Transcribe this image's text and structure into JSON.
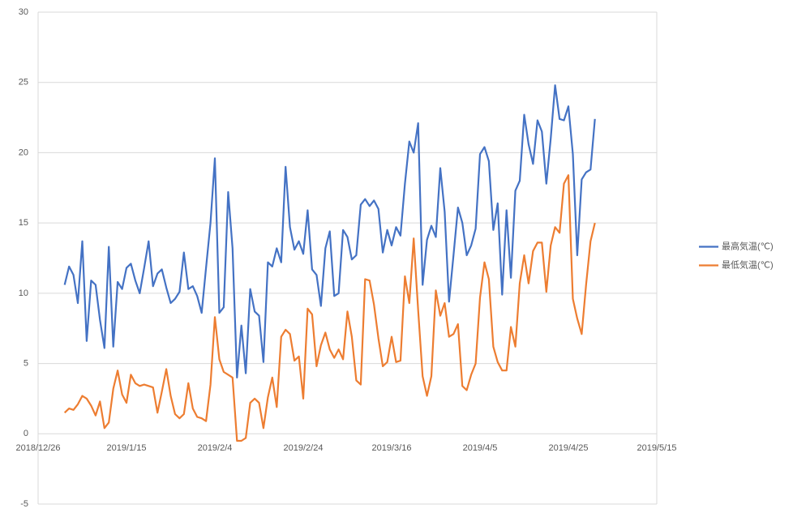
{
  "chart_data": {
    "type": "line",
    "x": [
      "2019/1/1",
      "2019/1/2",
      "2019/1/3",
      "2019/1/4",
      "2019/1/5",
      "2019/1/6",
      "2019/1/7",
      "2019/1/8",
      "2019/1/9",
      "2019/1/10",
      "2019/1/11",
      "2019/1/12",
      "2019/1/13",
      "2019/1/14",
      "2019/1/15",
      "2019/1/16",
      "2019/1/17",
      "2019/1/18",
      "2019/1/19",
      "2019/1/20",
      "2019/1/21",
      "2019/1/22",
      "2019/1/23",
      "2019/1/24",
      "2019/1/25",
      "2019/1/26",
      "2019/1/27",
      "2019/1/28",
      "2019/1/29",
      "2019/1/30",
      "2019/1/31",
      "2019/2/1",
      "2019/2/2",
      "2019/2/3",
      "2019/2/4",
      "2019/2/5",
      "2019/2/6",
      "2019/2/7",
      "2019/2/8",
      "2019/2/9",
      "2019/2/10",
      "2019/2/11",
      "2019/2/12",
      "2019/2/13",
      "2019/2/14",
      "2019/2/15",
      "2019/2/16",
      "2019/2/17",
      "2019/2/18",
      "2019/2/19",
      "2019/2/20",
      "2019/2/21",
      "2019/2/22",
      "2019/2/23",
      "2019/2/24",
      "2019/2/25",
      "2019/2/26",
      "2019/2/27",
      "2019/2/28",
      "2019/3/1",
      "2019/3/2",
      "2019/3/3",
      "2019/3/4",
      "2019/3/5",
      "2019/3/6",
      "2019/3/7",
      "2019/3/8",
      "2019/3/9",
      "2019/3/10",
      "2019/3/11",
      "2019/3/12",
      "2019/3/13",
      "2019/3/14",
      "2019/3/15",
      "2019/3/16",
      "2019/3/17",
      "2019/3/18",
      "2019/3/19",
      "2019/3/20",
      "2019/3/21",
      "2019/3/22",
      "2019/3/23",
      "2019/3/24",
      "2019/3/25",
      "2019/3/26",
      "2019/3/27",
      "2019/3/28",
      "2019/3/29",
      "2019/3/30",
      "2019/3/31",
      "2019/4/1",
      "2019/4/2",
      "2019/4/3",
      "2019/4/4",
      "2019/4/5",
      "2019/4/6",
      "2019/4/7",
      "2019/4/8",
      "2019/4/9",
      "2019/4/10",
      "2019/4/11",
      "2019/4/12",
      "2019/4/13",
      "2019/4/14",
      "2019/4/15",
      "2019/4/16",
      "2019/4/17",
      "2019/4/18",
      "2019/4/19",
      "2019/4/20",
      "2019/4/21",
      "2019/4/22",
      "2019/4/23",
      "2019/4/24",
      "2019/4/25",
      "2019/4/26",
      "2019/4/27",
      "2019/4/28",
      "2019/4/29",
      "2019/4/30",
      "2019/5/1"
    ],
    "series": [
      {
        "name": "最高気温(℃)",
        "color": "#4472c4",
        "values": [
          10.6,
          11.9,
          11.3,
          9.3,
          13.7,
          6.6,
          10.9,
          10.6,
          8.1,
          6.1,
          13.3,
          6.2,
          10.8,
          10.3,
          11.8,
          12.1,
          10.9,
          10.0,
          11.8,
          13.7,
          10.5,
          11.4,
          11.7,
          10.4,
          9.3,
          9.6,
          10.1,
          12.9,
          10.3,
          10.5,
          9.8,
          8.6,
          11.8,
          15.0,
          19.6,
          8.6,
          9.0,
          17.2,
          13.2,
          4.0,
          7.7,
          4.3,
          10.3,
          8.7,
          8.4,
          5.1,
          12.2,
          11.9,
          13.2,
          12.2,
          19.0,
          14.7,
          13.1,
          13.7,
          12.8,
          15.9,
          11.7,
          11.3,
          9.1,
          13.2,
          14.4,
          9.8,
          10.0,
          14.5,
          14.0,
          12.4,
          12.7,
          16.3,
          16.7,
          16.2,
          16.6,
          16.0,
          12.9,
          14.5,
          13.4,
          14.7,
          14.1,
          17.8,
          20.8,
          20.0,
          22.1,
          10.6,
          13.8,
          14.8,
          14.0,
          18.9,
          15.8,
          9.4,
          12.7,
          16.1,
          15.0,
          12.7,
          13.4,
          14.6,
          19.9,
          20.4,
          19.4,
          14.5,
          16.4,
          9.9,
          15.9,
          11.1,
          17.3,
          18.0,
          22.7,
          20.6,
          19.2,
          22.3,
          21.5,
          17.8,
          21.0,
          24.8,
          22.4,
          22.3,
          23.3,
          19.9,
          12.7,
          18.1,
          18.6,
          18.8,
          22.4
        ]
      },
      {
        "name": "最低気温(℃)",
        "color": "#ed7d31",
        "values": [
          1.5,
          1.8,
          1.7,
          2.1,
          2.7,
          2.5,
          2.0,
          1.3,
          2.3,
          0.4,
          0.8,
          3.2,
          4.5,
          2.8,
          2.2,
          4.2,
          3.6,
          3.4,
          3.5,
          3.4,
          3.3,
          1.5,
          3.0,
          4.6,
          2.7,
          1.4,
          1.1,
          1.4,
          3.6,
          1.8,
          1.2,
          1.1,
          0.9,
          3.5,
          8.3,
          5.3,
          4.4,
          4.2,
          4.0,
          -0.5,
          -0.5,
          -0.3,
          2.2,
          2.5,
          2.2,
          0.4,
          2.6,
          4.0,
          1.9,
          6.9,
          7.4,
          7.1,
          5.2,
          5.5,
          2.5,
          8.9,
          8.5,
          4.8,
          6.3,
          7.2,
          6.0,
          5.4,
          6.0,
          5.3,
          8.7,
          6.9,
          3.8,
          3.5,
          11.0,
          10.9,
          9.2,
          6.8,
          4.8,
          5.1,
          6.9,
          5.1,
          5.2,
          11.2,
          9.3,
          13.9,
          8.8,
          4.1,
          2.7,
          4.1,
          10.2,
          8.4,
          9.3,
          6.9,
          7.1,
          7.8,
          3.4,
          3.1,
          4.2,
          5.0,
          9.7,
          12.2,
          11.0,
          6.2,
          5.1,
          4.5,
          4.5,
          7.6,
          6.2,
          10.7,
          12.7,
          10.7,
          13.0,
          13.6,
          13.6,
          10.1,
          13.4,
          14.7,
          14.3,
          17.8,
          18.4,
          9.6,
          8.2,
          7.1,
          10.6,
          13.7,
          15.0
        ]
      }
    ],
    "xlim": [
      "2018/12/26",
      "2019/5/15"
    ],
    "xticks": [
      "2018/12/26",
      "2019/1/15",
      "2019/2/4",
      "2019/2/24",
      "2019/3/16",
      "2019/4/5",
      "2019/4/25",
      "2019/5/15"
    ],
    "ylim": [
      -5,
      30
    ],
    "yticks": [
      -5,
      0,
      5,
      10,
      15,
      20,
      25,
      30
    ],
    "grid": true,
    "legend": "right"
  }
}
